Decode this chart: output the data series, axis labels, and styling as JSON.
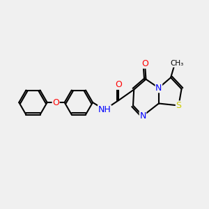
{
  "background_color": "#f0f0f0",
  "atom_colors": {
    "C": "#000000",
    "N": "#0000ff",
    "O": "#ff0000",
    "S": "#cccc00"
  },
  "bond_width": 1.5,
  "font_size": 9
}
